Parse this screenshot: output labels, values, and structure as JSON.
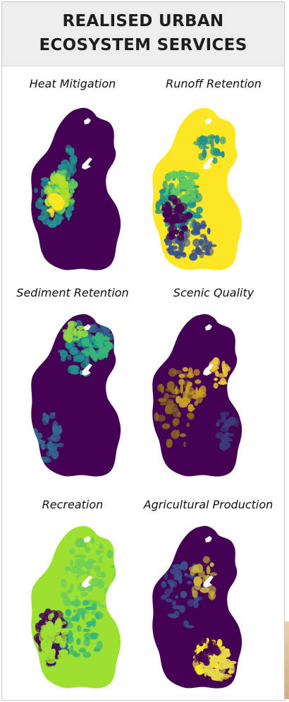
{
  "header": {
    "title_line1": "REALISED URBAN",
    "title_line2": "ECOSYSTEM SERVICES"
  },
  "maps": [
    {
      "label": "Heat Mitigation",
      "base": "#440154",
      "accents": [
        "#21918c",
        "#5ec962",
        "#b5de2b",
        "#fde725"
      ]
    },
    {
      "label": "Runoff Retention",
      "base": "#fde725",
      "accents": [
        "#3b528b",
        "#21918c",
        "#5ec962",
        "#440154"
      ]
    },
    {
      "label": "Sediment Retention",
      "base": "#440154",
      "accents": [
        "#31688e",
        "#21918c",
        "#35b779",
        "#8fd744"
      ]
    },
    {
      "label": "Scenic Quality",
      "base": "#440154",
      "accents": [
        "#8b6b1e",
        "#c9a227",
        "#e8c53a",
        "#3b3b7a"
      ]
    },
    {
      "label": "Recreation",
      "base": "#9ee032",
      "accents": [
        "#6cce59",
        "#35b779",
        "#31688e",
        "#440154"
      ]
    },
    {
      "label": "Agricultural Production",
      "base": "#440154",
      "accents": [
        "#3b528b",
        "#c9b83a",
        "#fde725",
        "#e6d84a"
      ]
    }
  ]
}
